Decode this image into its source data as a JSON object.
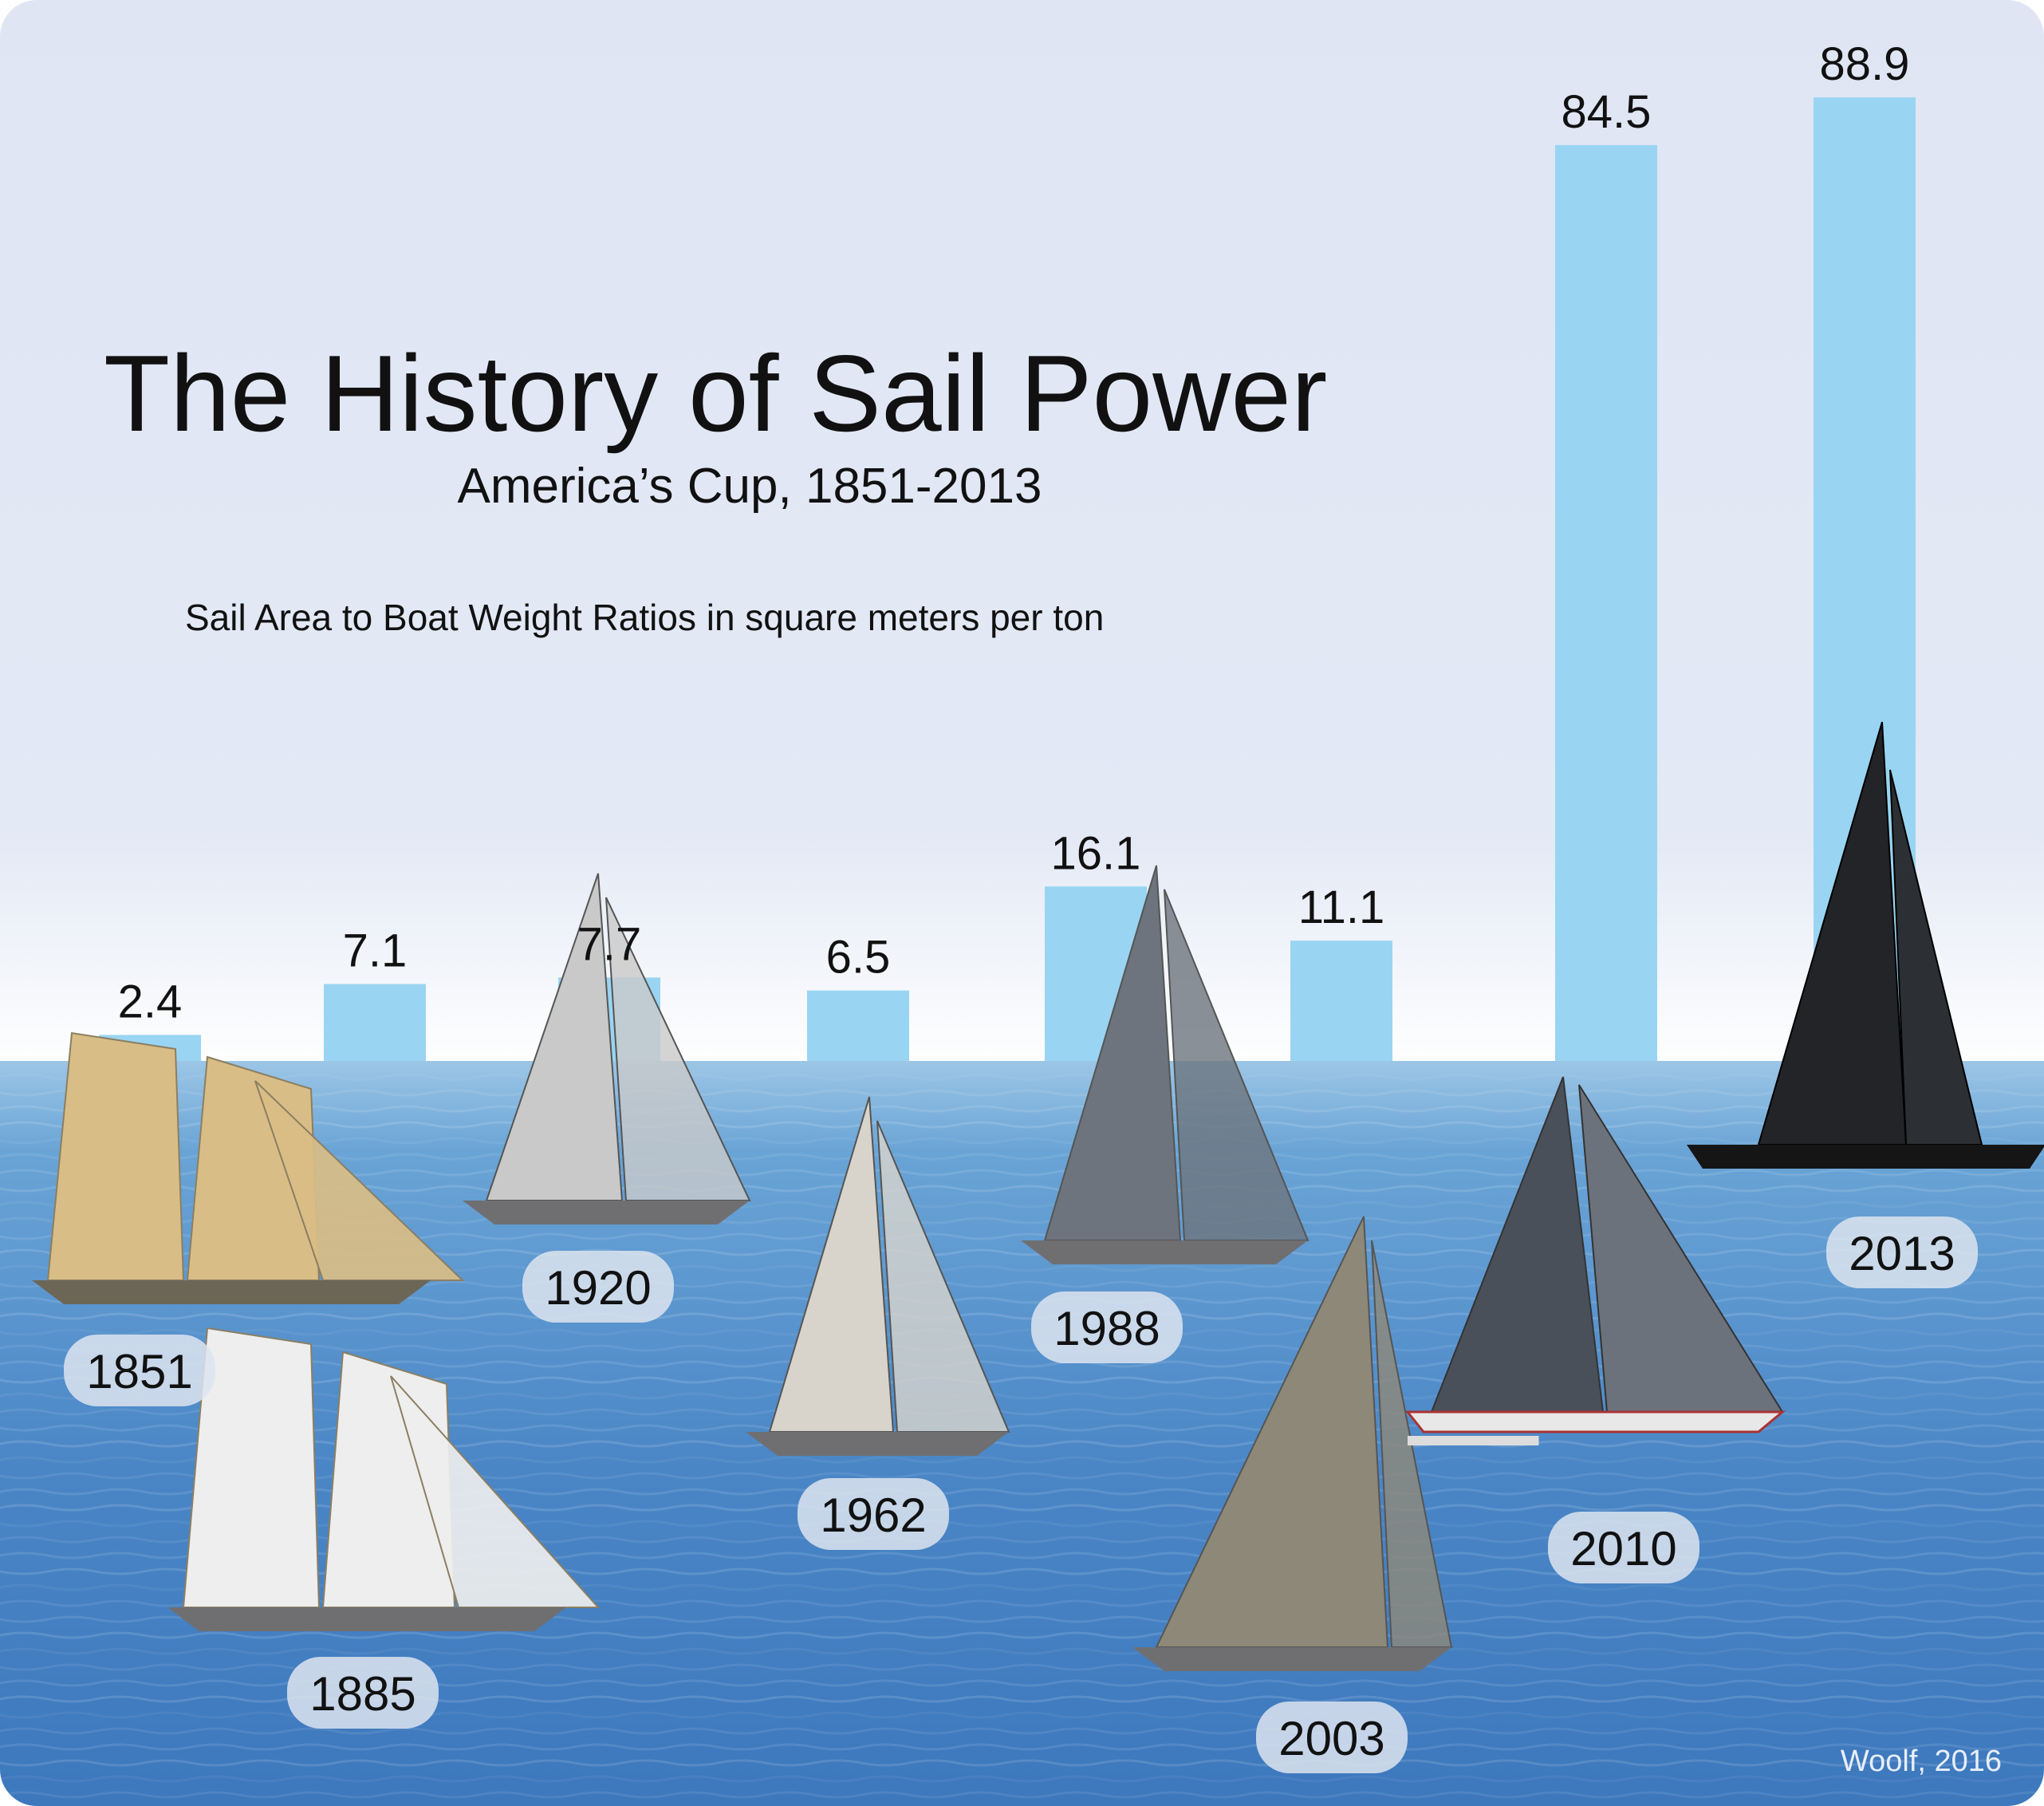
{
  "title": "The History of Sail Power",
  "subtitle": "America’s Cup, 1851-2013",
  "measure_label": "Sail Area to Boat Weight Ratios in square meters per ton",
  "credit": "Woolf, 2016",
  "colors": {
    "bar": "#99d5f2",
    "sky_top": "#dde5f4",
    "sea": "#4b86c7",
    "label_pill": "#dde4ee",
    "text": "#111111"
  },
  "chart_data": {
    "type": "bar",
    "categories": [
      "1851",
      "1885",
      "1920",
      "1962",
      "1988",
      "2003",
      "2010",
      "2013"
    ],
    "values": [
      2.4,
      7.1,
      7.7,
      6.5,
      16.1,
      11.1,
      84.5,
      88.9
    ],
    "value_labels": [
      "2.4",
      "7.1",
      "7.7",
      "6.5",
      "16.1",
      "11.1",
      "84.5",
      "88.9"
    ],
    "title": "The History of Sail Power",
    "subtitle": "America’s Cup, 1851-2013",
    "xlabel": "",
    "ylabel": "",
    "ylim": [
      0,
      92
    ],
    "grid": false,
    "legend": "none",
    "boats": [
      {
        "year": "1851",
        "icon": "schooner-icon",
        "color": "#d9bd86"
      },
      {
        "year": "1885",
        "icon": "schooner-icon",
        "color": "#eeeeee"
      },
      {
        "year": "1920",
        "icon": "sloop-icon",
        "color": "#c9c9c9"
      },
      {
        "year": "1962",
        "icon": "sloop-icon",
        "color": "#d8d4cc"
      },
      {
        "year": "1988",
        "icon": "sloop-icon",
        "color": "#6d747d"
      },
      {
        "year": "2003",
        "icon": "sloop-icon",
        "color": "#8e8878"
      },
      {
        "year": "2010",
        "icon": "trimaran-icon",
        "color": "#4a5059"
      },
      {
        "year": "2013",
        "icon": "catamaran-icon",
        "color": "#222428"
      }
    ]
  }
}
